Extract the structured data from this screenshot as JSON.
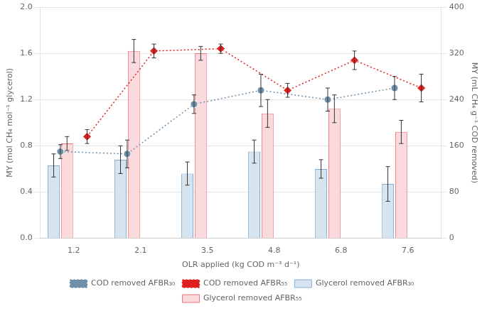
{
  "chart_data": {
    "type": "bar",
    "xlabel": "OLR applied (kg COD m⁻³ d⁻¹)",
    "ylabel": "MY (mol CH₄ mol⁻¹ glycerol)",
    "y2label": "MY (mL CH₄ g⁻¹ COD removed)",
    "categories": [
      "1.2",
      "2.1",
      "3.5",
      "4.8",
      "6.8",
      "7.6"
    ],
    "series": [
      {
        "name": "Glycerol removed AFBR₃₀",
        "type": "bar",
        "color": "#d6e4f0",
        "values": [
          0.63,
          0.68,
          0.56,
          0.75,
          0.6,
          0.47
        ],
        "errors": [
          0.1,
          0.12,
          0.1,
          0.1,
          0.08,
          0.15
        ]
      },
      {
        "name": "Glycerol removed AFBR₅₅",
        "type": "bar",
        "color": "#fadadd",
        "values": [
          0.82,
          1.62,
          1.6,
          1.08,
          1.12,
          0.92
        ],
        "errors": [
          0.06,
          0.1,
          0.06,
          0.12,
          0.12,
          0.1
        ]
      },
      {
        "name": "COD removed AFBR₃₀",
        "type": "line",
        "axis": "y2",
        "color": "#7090aa",
        "marker": "circle",
        "line_style": "dotted",
        "values": [
          150,
          146,
          232,
          256,
          240,
          260
        ],
        "errors": [
          12,
          24,
          16,
          28,
          20,
          20
        ]
      },
      {
        "name": "COD removed AFBR₅₅",
        "type": "line",
        "axis": "y2",
        "color": "#e02020",
        "marker": "diamond",
        "line_style": "dotted",
        "values": [
          176,
          324,
          328,
          256,
          308,
          260
        ],
        "errors": [
          12,
          12,
          8,
          12,
          16,
          24
        ]
      }
    ],
    "ylim": [
      0.0,
      2.0
    ],
    "yticks": [
      {
        "value": 0,
        "label": "0.0"
      },
      0.4,
      0.8,
      1.2,
      1.6,
      {
        "value": 2,
        "label": "2.0"
      }
    ],
    "y2lim": [
      0,
      400
    ],
    "y2ticks": [
      0,
      80,
      160,
      240,
      320,
      400
    ],
    "grid": true,
    "legend": "bottom"
  }
}
